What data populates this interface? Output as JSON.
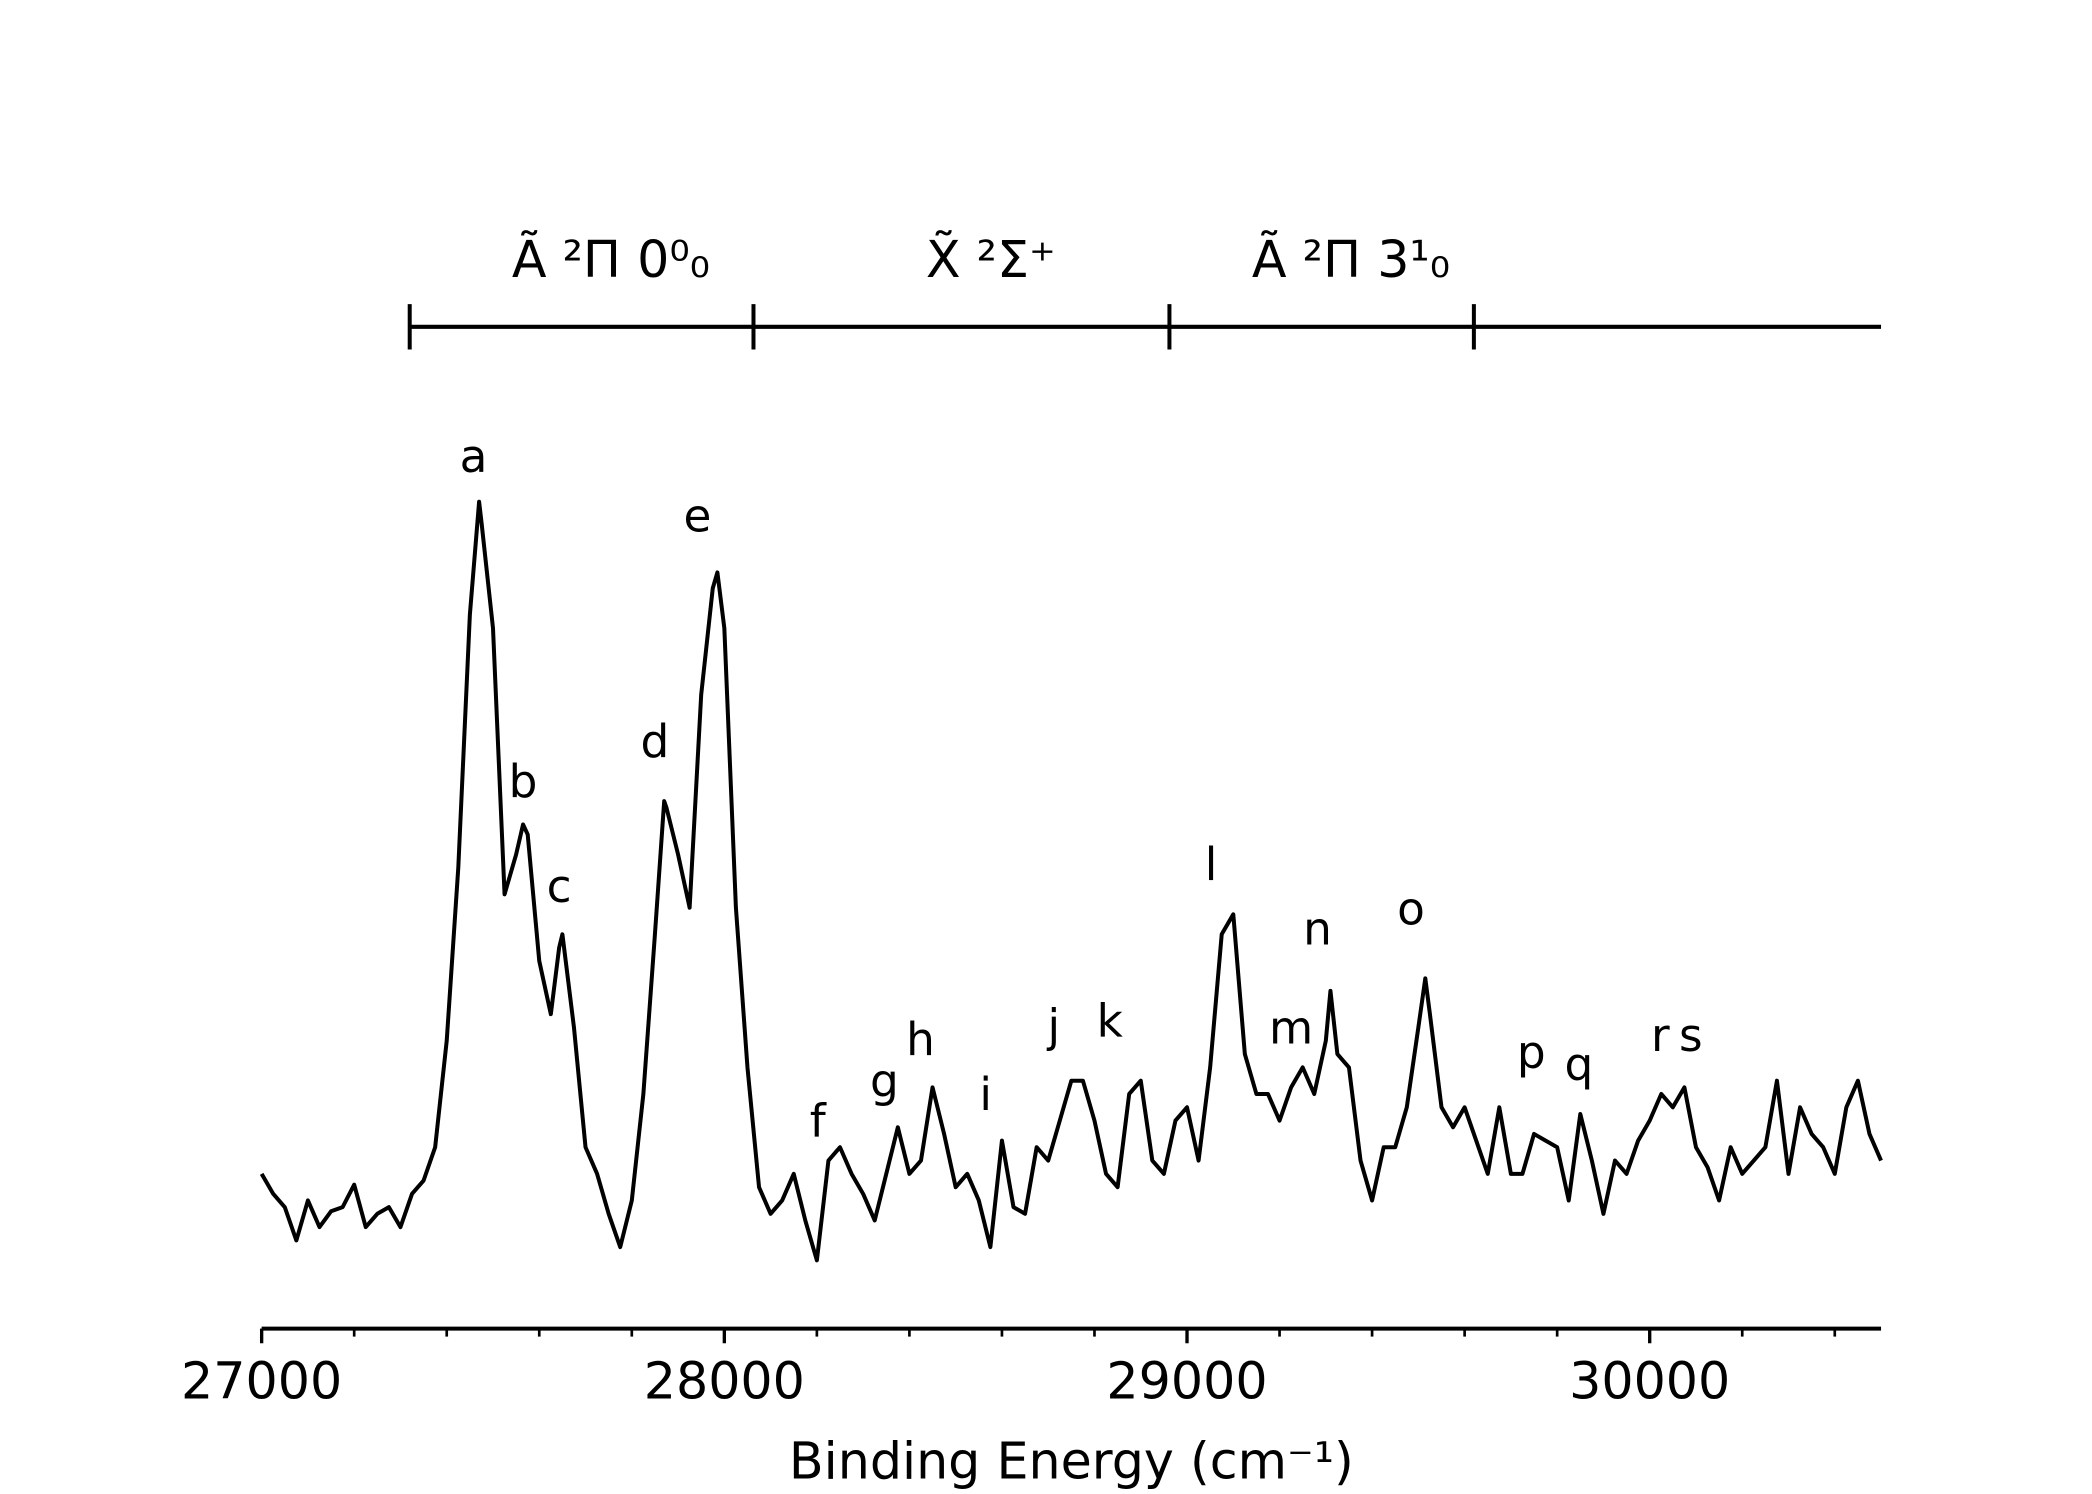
{
  "chart_data": {
    "type": "line",
    "xlabel": "Binding Energy (cm⁻¹)",
    "xlim": [
      27000,
      30500
    ],
    "ylim": [
      0,
      1.1
    ],
    "xticks": [
      27000,
      28000,
      29000,
      30000
    ],
    "xminorticks": [
      27200,
      27400,
      27600,
      27800,
      28200,
      28400,
      28600,
      28800,
      29200,
      29400,
      29600,
      29800,
      30200,
      30400
    ],
    "color": "#000000",
    "x": [
      27000,
      27025,
      27050,
      27075,
      27100,
      27125,
      27150,
      27175,
      27200,
      27225,
      27250,
      27275,
      27300,
      27325,
      27350,
      27375,
      27400,
      27425,
      27450,
      27470,
      27475,
      27500,
      27525,
      27550,
      27565,
      27575,
      27600,
      27625,
      27643,
      27650,
      27675,
      27700,
      27725,
      27750,
      27775,
      27800,
      27825,
      27850,
      27870,
      27875,
      27900,
      27925,
      27950,
      27975,
      27985,
      28000,
      28025,
      28050,
      28075,
      28100,
      28125,
      28150,
      28175,
      28200,
      28225,
      28250,
      28275,
      28300,
      28325,
      28350,
      28375,
      28400,
      28425,
      28450,
      28475,
      28500,
      28525,
      28550,
      28575,
      28600,
      28625,
      28650,
      28675,
      28700,
      28725,
      28750,
      28775,
      28800,
      28825,
      28850,
      28875,
      28900,
      28925,
      28950,
      28975,
      29000,
      29025,
      29050,
      29075,
      29100,
      29125,
      29150,
      29175,
      29200,
      29225,
      29250,
      29275,
      29300,
      29310,
      29325,
      29350,
      29375,
      29400,
      29425,
      29450,
      29475,
      29500,
      29515,
      29525,
      29550,
      29575,
      29600,
      29625,
      29650,
      29675,
      29700,
      29725,
      29750,
      29775,
      29800,
      29825,
      29850,
      29875,
      29900,
      29925,
      29950,
      29975,
      30000,
      30025,
      30050,
      30075,
      30100,
      30125,
      30150,
      30175,
      30200,
      30225,
      30250,
      30275,
      30300,
      30325,
      30350,
      30375,
      30400,
      30425,
      30450,
      30475,
      30500
    ],
    "values": [
      0.186,
      0.162,
      0.146,
      0.106,
      0.154,
      0.122,
      0.141,
      0.146,
      0.173,
      0.122,
      0.138,
      0.146,
      0.122,
      0.162,
      0.178,
      0.218,
      0.346,
      0.554,
      0.858,
      0.994,
      0.97,
      0.842,
      0.522,
      0.57,
      0.606,
      0.594,
      0.442,
      0.378,
      0.458,
      0.474,
      0.362,
      0.218,
      0.186,
      0.138,
      0.098,
      0.154,
      0.282,
      0.474,
      0.634,
      0.626,
      0.57,
      0.506,
      0.762,
      0.89,
      0.909,
      0.842,
      0.506,
      0.314,
      0.17,
      0.138,
      0.154,
      0.186,
      0.13,
      0.082,
      0.202,
      0.218,
      0.186,
      0.162,
      0.13,
      0.186,
      0.242,
      0.186,
      0.202,
      0.29,
      0.234,
      0.17,
      0.186,
      0.154,
      0.098,
      0.226,
      0.146,
      0.138,
      0.218,
      0.202,
      0.25,
      0.298,
      0.298,
      0.25,
      0.186,
      0.17,
      0.282,
      0.298,
      0.202,
      0.186,
      0.25,
      0.266,
      0.202,
      0.314,
      0.474,
      0.498,
      0.33,
      0.282,
      0.282,
      0.25,
      0.29,
      0.314,
      0.282,
      0.346,
      0.406,
      0.33,
      0.314,
      0.202,
      0.154,
      0.218,
      0.218,
      0.266,
      0.362,
      0.421,
      0.378,
      0.266,
      0.242,
      0.266,
      0.226,
      0.186,
      0.266,
      0.186,
      0.186,
      0.234,
      0.226,
      0.218,
      0.154,
      0.258,
      0.202,
      0.138,
      0.202,
      0.186,
      0.226,
      0.25,
      0.282,
      0.266,
      0.29,
      0.218,
      0.194,
      0.154,
      0.218,
      0.186,
      0.202,
      0.218,
      0.298,
      0.186,
      0.266,
      0.234,
      0.218,
      0.186,
      0.266,
      0.298,
      0.234,
      0.202
    ],
    "annotations": [
      {
        "text": "a",
        "x": 27458,
        "y": 1.045
      },
      {
        "text": "b",
        "x": 27565,
        "y": 0.654
      },
      {
        "text": "c",
        "x": 27643,
        "y": 0.528
      },
      {
        "text": "d",
        "x": 27850,
        "y": 0.702
      },
      {
        "text": "e",
        "x": 27942,
        "y": 0.973
      },
      {
        "text": "f",
        "x": 28202,
        "y": 0.246
      },
      {
        "text": "g",
        "x": 28346,
        "y": 0.294
      },
      {
        "text": "h",
        "x": 28424,
        "y": 0.344
      },
      {
        "text": "i",
        "x": 28565,
        "y": 0.278
      },
      {
        "text": "j",
        "x": 28712,
        "y": 0.36
      },
      {
        "text": "k",
        "x": 28833,
        "y": 0.366
      },
      {
        "text": "l",
        "x": 29052,
        "y": 0.554
      },
      {
        "text": "m",
        "x": 29225,
        "y": 0.358
      },
      {
        "text": "n",
        "x": 29282,
        "y": 0.477
      },
      {
        "text": "o",
        "x": 29484,
        "y": 0.501
      },
      {
        "text": "p",
        "x": 29744,
        "y": 0.328
      },
      {
        "text": "q",
        "x": 29847,
        "y": 0.314
      },
      {
        "text": "r",
        "x": 30023,
        "y": 0.349
      },
      {
        "text": "s",
        "x": 30089,
        "y": 0.349
      }
    ],
    "state_bar": {
      "ticks": [
        27320,
        28063,
        28962,
        29620
      ],
      "labels": [
        "Ã ²Π 0⁰₀",
        "X̃ ²Σ⁺",
        "Ã ²Π 3¹₀"
      ]
    }
  }
}
